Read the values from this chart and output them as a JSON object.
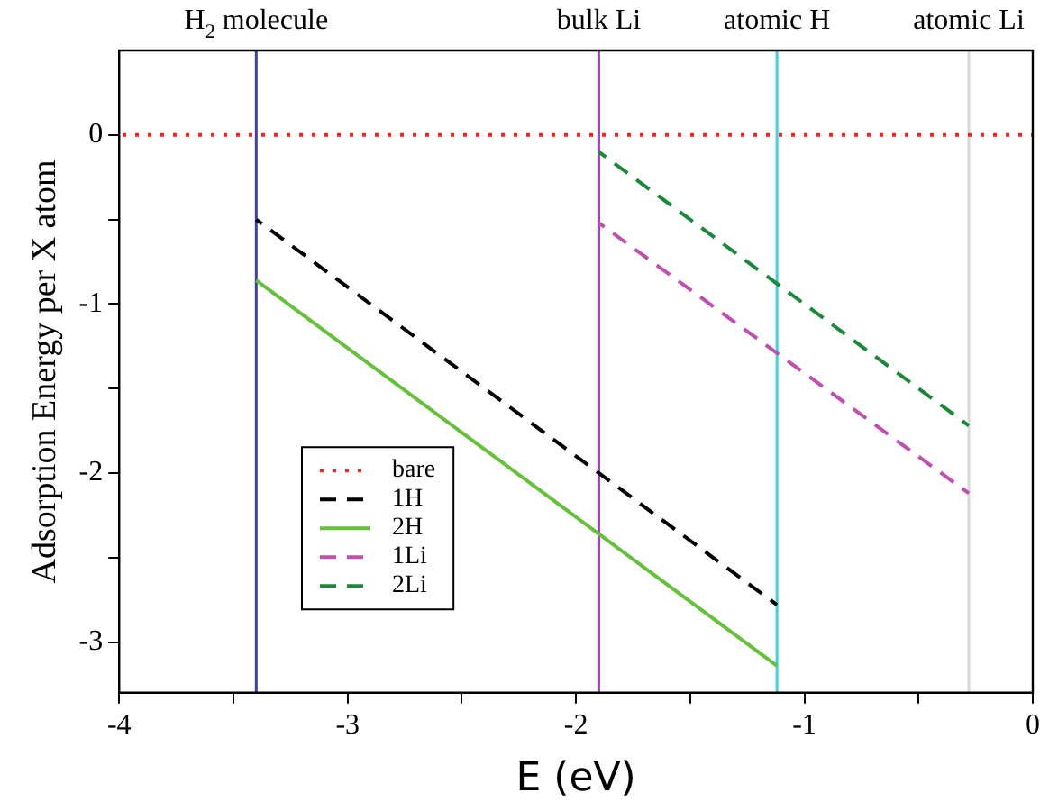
{
  "chart_data": {
    "type": "line",
    "xlabel": "E (eV)",
    "ylabel": "Adsorption Energy per X atom",
    "xlim": [
      -4,
      0
    ],
    "ylim": [
      -3.3,
      0.5
    ],
    "xticks": [
      -4,
      {
        "value": -3.5,
        "label": null
      },
      -3,
      {
        "value": -2.5,
        "label": null
      },
      -2,
      {
        "value": -1.5,
        "label": null
      },
      -1,
      {
        "value": -0.5,
        "label": null
      },
      0
    ],
    "yticks": [
      {
        "value": -3,
        "label": "-3"
      },
      {
        "value": -2.5,
        "label": null
      },
      {
        "value": -2,
        "label": "-2"
      },
      {
        "value": -1.5,
        "label": null
      },
      {
        "value": -1,
        "label": "-1"
      },
      {
        "value": -0.5,
        "label": null
      },
      0
    ],
    "series": [
      {
        "name": "bare",
        "color": "#ff2020",
        "line_style": "dotted",
        "x": [
          -4,
          0
        ],
        "values": [
          0,
          0
        ]
      },
      {
        "name": "1H",
        "color": "#000000",
        "line_style": "dashed",
        "x": [
          -3.4,
          -1.12
        ],
        "values": [
          -0.5,
          -2.78
        ]
      },
      {
        "name": "2H",
        "color": "#66c13a",
        "line_style": "solid",
        "x": [
          -3.4,
          -1.12
        ],
        "values": [
          -0.86,
          -3.14
        ]
      },
      {
        "name": "1Li",
        "color": "#c050b0",
        "line_style": "dashed",
        "x": [
          -1.9,
          -0.28
        ],
        "values": [
          -0.52,
          -2.12
        ]
      },
      {
        "name": "2Li",
        "color": "#1a8a3a",
        "line_style": "dashed",
        "x": [
          -1.9,
          -0.28
        ],
        "values": [
          -0.1,
          -1.72
        ]
      }
    ],
    "ref_lines": [
      {
        "axis": "x",
        "value": -3.4,
        "label": "H$_{2}$ molecule",
        "color": "#4040a0"
      },
      {
        "axis": "x",
        "value": -1.9,
        "label": "bulk Li",
        "color": "#a040c0"
      },
      {
        "axis": "x",
        "value": -1.12,
        "label": "atomic H",
        "color": "#40d0d8"
      },
      {
        "axis": "x",
        "value": -0.28,
        "label": "atomic Li",
        "color": "#d8d8d8"
      }
    ],
    "legend": "bottom left",
    "grid": false
  }
}
